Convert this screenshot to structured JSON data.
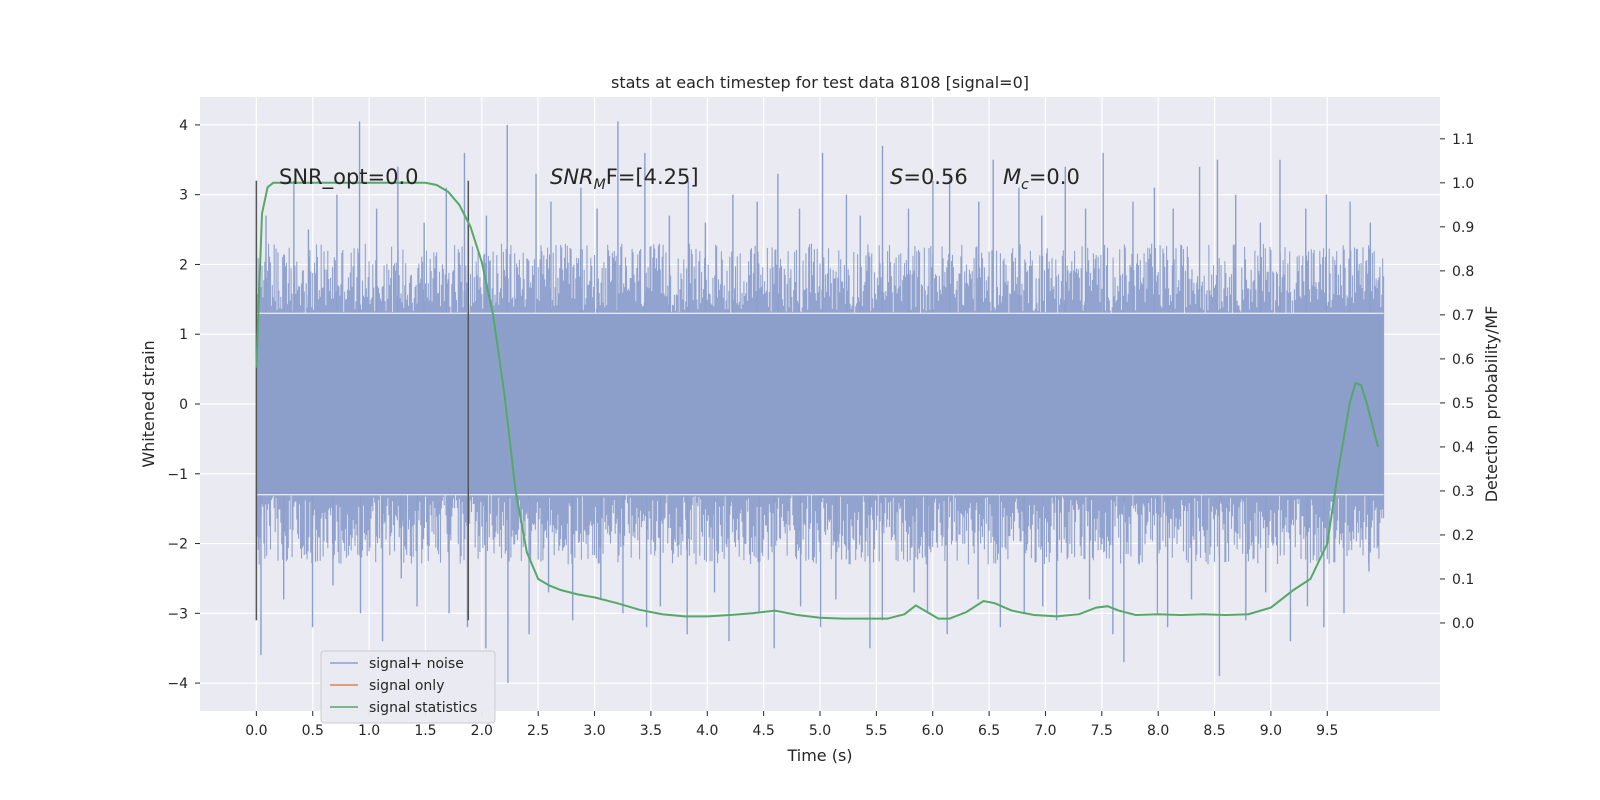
{
  "chart_data": {
    "type": "line",
    "title": "stats at each timestep for test data 8108 [signal=0]",
    "xlabel": "Time (s)",
    "ylabel_left": "Whitened strain",
    "ylabel_right": "Detection probability/MF",
    "xlim": [
      -0.5,
      10.5
    ],
    "ylim_left": [
      -4.4,
      4.4
    ],
    "ylim_right": [
      -0.2,
      1.195
    ],
    "x_ticks": [
      0.0,
      0.5,
      1.0,
      1.5,
      2.0,
      2.5,
      3.0,
      3.5,
      4.0,
      4.5,
      5.0,
      5.5,
      6.0,
      6.5,
      7.0,
      7.5,
      8.0,
      8.5,
      9.0,
      9.5
    ],
    "x_tick_labels": [
      "0.0",
      "0.5",
      "1.0",
      "1.5",
      "2.0",
      "2.5",
      "3.0",
      "3.5",
      "4.0",
      "4.5",
      "5.0",
      "5.5",
      "6.0",
      "6.5",
      "7.0",
      "7.5",
      "8.0",
      "8.5",
      "9.0",
      "9.5"
    ],
    "y_ticks_left": [
      -4,
      -3,
      -2,
      -1,
      0,
      1,
      2,
      3,
      4
    ],
    "y_tick_labels_left": [
      "−4",
      "−3",
      "−2",
      "−1",
      "0",
      "1",
      "2",
      "3",
      "4"
    ],
    "y_ticks_right": [
      0.0,
      0.1,
      0.2,
      0.3,
      0.4,
      0.5,
      0.6,
      0.7,
      0.8,
      0.9,
      1.0,
      1.1
    ],
    "y_tick_labels_right": [
      "0.0",
      "0.1",
      "0.2",
      "0.3",
      "0.4",
      "0.5",
      "0.6",
      "0.7",
      "0.8",
      "0.9",
      "1.0",
      "1.1"
    ],
    "grid": true,
    "legend_position": "lower-left",
    "annotations": {
      "snr_opt": "SNR_opt=0.0",
      "snr_mf_main": "SNR",
      "snr_mf_sub": "M",
      "snr_mf_rest": "F=[4.25]",
      "s_main": "S",
      "s_rest": "=0.56",
      "mc_main": "M",
      "mc_sub": "c",
      "mc_rest": "=0.0"
    },
    "vertical_markers_x": [
      0.0,
      1.88
    ],
    "vertical_markers_y": [
      -3.1,
      3.2
    ],
    "series": [
      {
        "name": "signal+ noise",
        "color": "#8c9fcb",
        "axis": "left",
        "x_range": [
          0.0,
          10.0
        ],
        "band_y": [
          -1.3,
          1.3
        ],
        "spike_hi_y": [
          2.7,
          3.2,
          2.5,
          3.0,
          4.05,
          2.8,
          3.4,
          2.6,
          3.1,
          3.6,
          2.7,
          4.0,
          3.3,
          2.9,
          3.1,
          2.8,
          4.05,
          3.6,
          2.7,
          3.2,
          2.6,
          3.0,
          2.9,
          3.3,
          2.8,
          3.6,
          3.0,
          2.7,
          3.7,
          2.8,
          3.2,
          3.3,
          2.9,
          3.5,
          3.1,
          2.7,
          3.4,
          2.8,
          3.6,
          2.9,
          3.1,
          2.8,
          3.4,
          3.5,
          3.0,
          2.6,
          3.5,
          2.8,
          3.0,
          2.9,
          2.6
        ],
        "spike_lo_y": [
          -3.6,
          -2.8,
          -3.2,
          -2.6,
          -3.0,
          -3.4,
          -2.5,
          -2.9,
          -3.0,
          -3.2,
          -3.5,
          -4.0,
          -3.3,
          -2.7,
          -3.1,
          -2.8,
          -3.0,
          -3.2,
          -2.9,
          -3.3,
          -2.7,
          -3.4,
          -3.0,
          -3.5,
          -2.9,
          -3.2,
          -2.8,
          -3.5,
          -3.1,
          -2.7,
          -3.0,
          -3.3,
          -2.8,
          -3.2,
          -3.0,
          -2.9,
          -3.1,
          -2.8,
          -3.3,
          -3.7,
          -3.0,
          -3.2,
          -2.8,
          -3.9,
          -3.1,
          -2.7,
          -3.4,
          -2.9,
          -3.2,
          -3.0,
          -2.4
        ]
      },
      {
        "name": "signal only",
        "color": "#dd8452",
        "axis": "left",
        "x": [],
        "y": []
      },
      {
        "name": "signal statistics",
        "color": "#55a868",
        "axis": "right",
        "x": [
          0.0,
          0.05,
          0.1,
          0.15,
          0.25,
          0.5,
          1.0,
          1.5,
          1.6,
          1.7,
          1.8,
          1.9,
          2.0,
          2.1,
          2.2,
          2.3,
          2.4,
          2.5,
          2.6,
          2.7,
          2.85,
          3.0,
          3.2,
          3.4,
          3.6,
          3.8,
          4.0,
          4.2,
          4.4,
          4.6,
          4.8,
          5.0,
          5.2,
          5.4,
          5.6,
          5.75,
          5.85,
          5.95,
          6.05,
          6.15,
          6.3,
          6.45,
          6.55,
          6.7,
          6.9,
          7.1,
          7.3,
          7.45,
          7.55,
          7.65,
          7.8,
          8.0,
          8.2,
          8.4,
          8.6,
          8.8,
          9.0,
          9.1,
          9.2,
          9.35,
          9.5,
          9.6,
          9.7,
          9.75,
          9.8,
          9.85,
          9.9,
          9.95
        ],
        "y": [
          0.58,
          0.93,
          0.99,
          1.0,
          1.0,
          1.0,
          1.0,
          1.0,
          0.995,
          0.98,
          0.95,
          0.9,
          0.82,
          0.7,
          0.52,
          0.3,
          0.16,
          0.1,
          0.085,
          0.075,
          0.065,
          0.058,
          0.045,
          0.03,
          0.02,
          0.015,
          0.015,
          0.018,
          0.022,
          0.028,
          0.018,
          0.012,
          0.01,
          0.01,
          0.01,
          0.02,
          0.04,
          0.025,
          0.01,
          0.01,
          0.025,
          0.05,
          0.045,
          0.028,
          0.018,
          0.015,
          0.02,
          0.035,
          0.038,
          0.028,
          0.018,
          0.02,
          0.018,
          0.02,
          0.018,
          0.02,
          0.035,
          0.055,
          0.075,
          0.1,
          0.18,
          0.35,
          0.5,
          0.545,
          0.54,
          0.5,
          0.45,
          0.4
        ]
      }
    ]
  }
}
